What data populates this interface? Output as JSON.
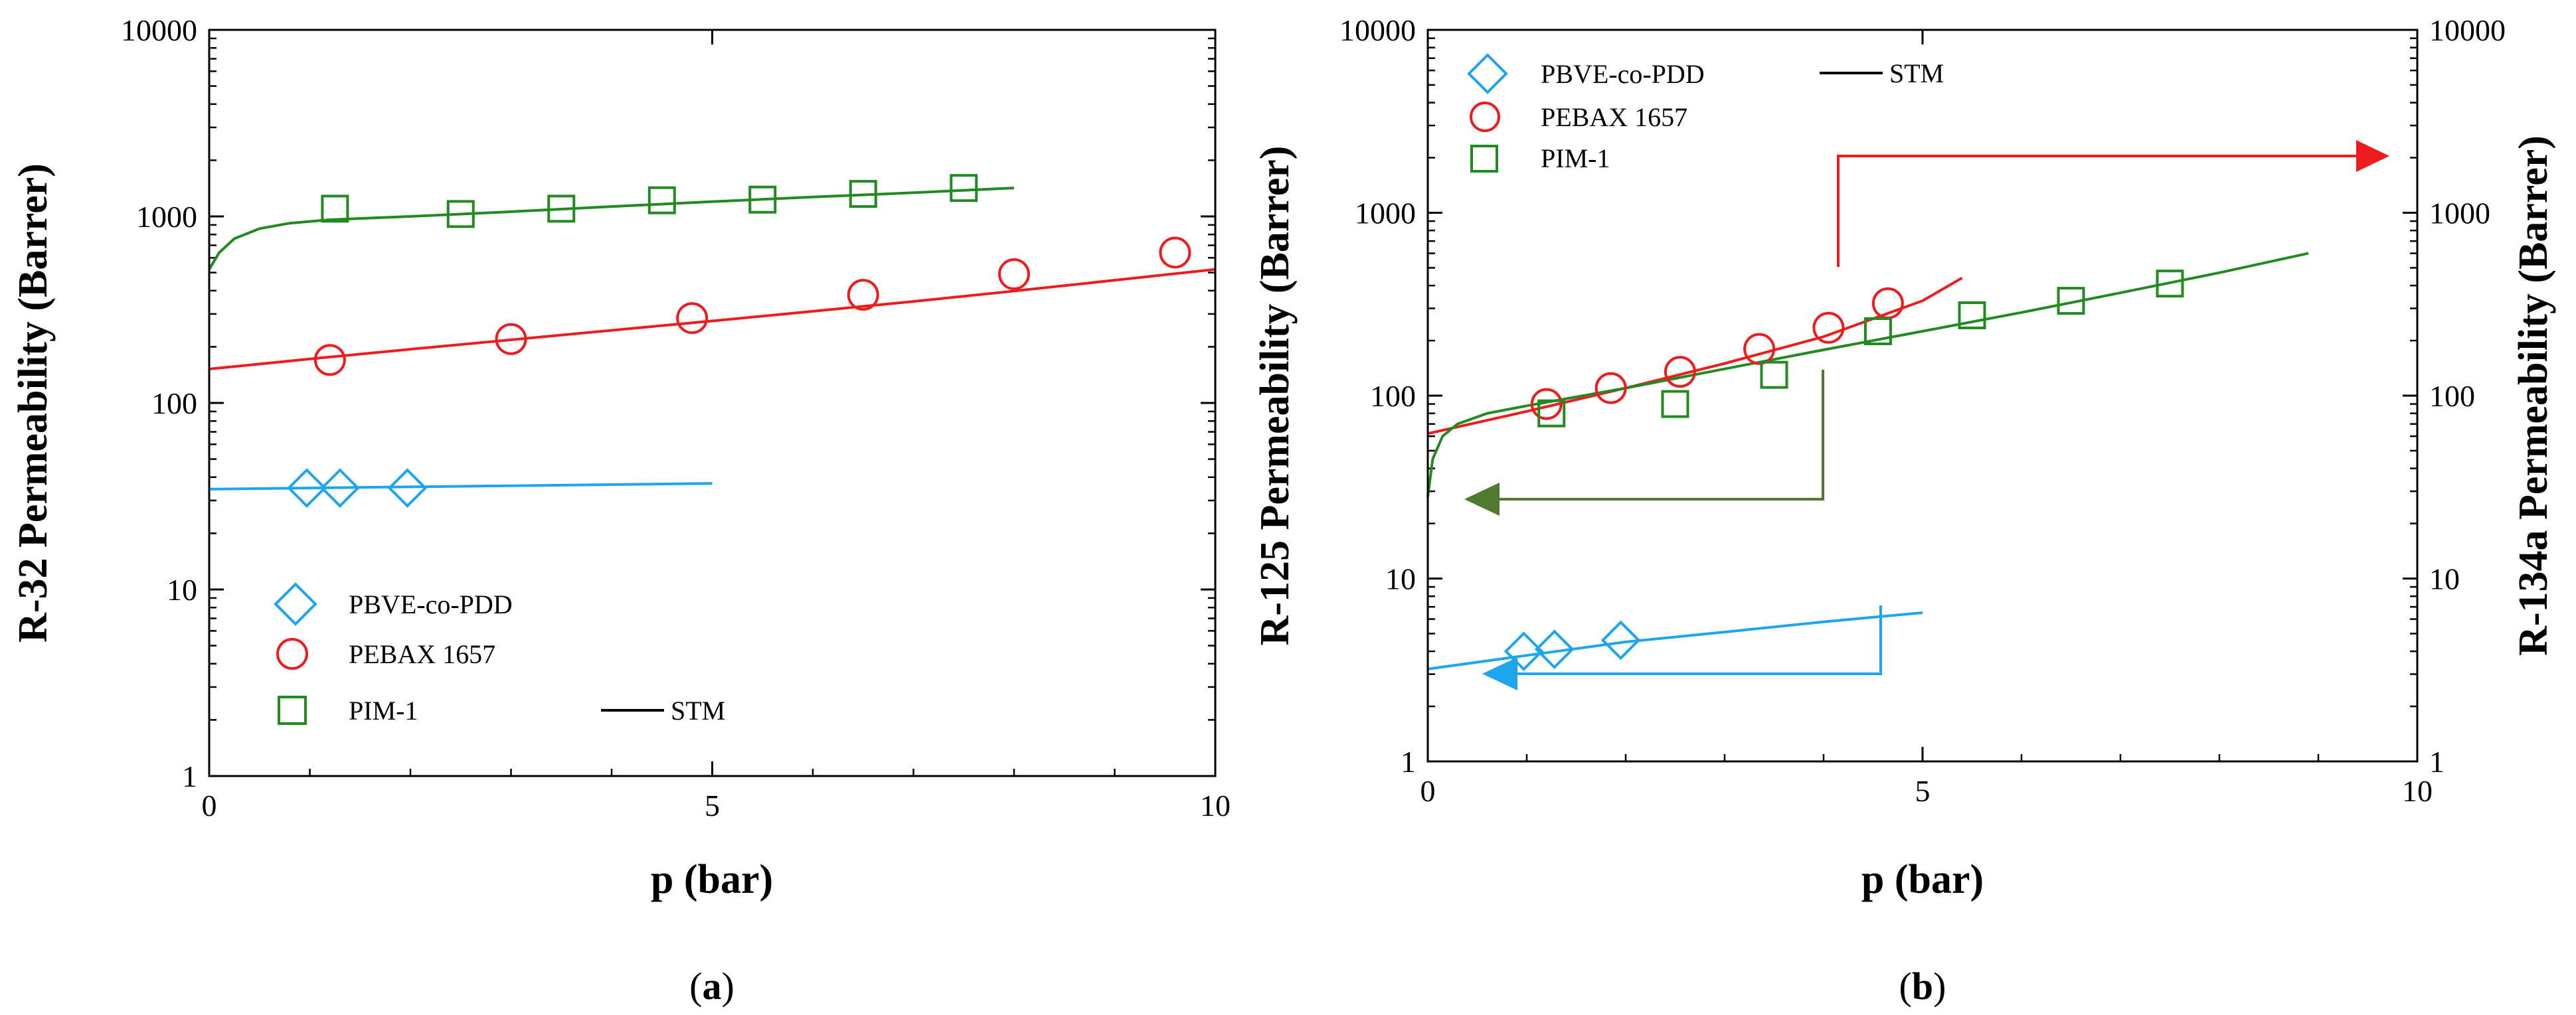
{
  "colors": {
    "blue": "#1ea5ef",
    "red": "#ee1c1c",
    "green": "#218a21",
    "arrow_green": "#4f7a2f",
    "axis": "#000000"
  },
  "chart_data": [
    {
      "type": "scatter",
      "panel_label_prefix": "(",
      "panel_label": "a",
      "panel_label_suffix": ")",
      "xlabel": "p (bar)",
      "ylabel": "R-32 Permeability (Barrer)",
      "xlim": [
        0,
        10
      ],
      "ylim": [
        1,
        10000
      ],
      "yscale": "log",
      "x_ticks": [
        0,
        5,
        10
      ],
      "x_tick_labels": [
        "0",
        "5",
        "10"
      ],
      "y_ticks": [
        1,
        10,
        100,
        1000,
        10000
      ],
      "y_tick_labels": [
        "1",
        "10",
        "100",
        "1000",
        "10000"
      ],
      "legend": {
        "position": "bottom-left",
        "entries": [
          "PBVE-co-PDD",
          "PEBAX 1657",
          "PIM-1"
        ],
        "model_label": "STM"
      },
      "series": [
        {
          "name": "PBVE-co-PDD",
          "color": "#1ea5ef",
          "marker": "diamond",
          "x": [
            0.97,
            1.3,
            1.97
          ],
          "y": [
            35,
            35,
            35
          ],
          "fit_x": [
            0,
            1,
            2,
            3,
            4,
            5
          ],
          "fit_y": [
            34.5,
            35,
            35.5,
            36,
            36.5,
            37
          ]
        },
        {
          "name": "PEBAX 1657",
          "color": "#ee1c1c",
          "marker": "circle",
          "x": [
            1.2,
            3.0,
            4.8,
            6.5,
            8.0,
            9.6
          ],
          "y": [
            170,
            220,
            285,
            380,
            490,
            640
          ],
          "fit_x": [
            0,
            1,
            2,
            3,
            4,
            5,
            6,
            7,
            8,
            9,
            10
          ],
          "fit_y": [
            152,
            172,
            194,
            218,
            245,
            275,
            310,
            350,
            398,
            455,
            520
          ]
        },
        {
          "name": "PIM-1",
          "color": "#218a21",
          "marker": "square",
          "x": [
            1.25,
            2.5,
            3.5,
            4.5,
            5.5,
            6.5,
            7.5
          ],
          "y": [
            1100,
            1030,
            1100,
            1220,
            1230,
            1320,
            1420
          ],
          "fit_x": [
            0,
            0.1,
            0.25,
            0.5,
            0.8,
            1.2,
            2,
            3,
            4,
            5,
            6,
            7,
            8
          ],
          "fit_y": [
            520,
            640,
            760,
            860,
            920,
            960,
            1000,
            1060,
            1130,
            1200,
            1270,
            1340,
            1420
          ]
        }
      ]
    },
    {
      "type": "scatter",
      "panel_label_prefix": "(",
      "panel_label": "b",
      "panel_label_suffix": ")",
      "xlabel": "p (bar)",
      "ylabel": "R-125 Permeability (Barrer)",
      "ylabel_right": "R-134a Permeability (Barrer)",
      "xlim": [
        0,
        10
      ],
      "ylim": [
        1,
        10000
      ],
      "yscale": "log",
      "x_ticks": [
        0,
        5,
        10
      ],
      "x_tick_labels": [
        "0",
        "5",
        "10"
      ],
      "y_ticks": [
        1,
        10,
        100,
        1000,
        10000
      ],
      "y_tick_labels": [
        "1",
        "10",
        "100",
        "1000",
        "10000"
      ],
      "legend": {
        "position": "top-left",
        "entries": [
          "PBVE-co-PDD",
          "PEBAX 1657",
          "PIM-1"
        ],
        "model_label": "STM"
      },
      "annotations": [
        "PBVE-co-PDD and PIM-1 read on left axis (R-125)",
        "PEBAX 1657 reads on right axis (R-134a)"
      ],
      "series": [
        {
          "name": "PBVE-co-PDD",
          "color": "#1ea5ef",
          "marker": "diamond",
          "x": [
            0.97,
            1.28,
            1.95
          ],
          "y": [
            4.0,
            4.1,
            4.6
          ],
          "fit_x": [
            0,
            1,
            2,
            3,
            4,
            5
          ],
          "fit_y": [
            3.2,
            3.8,
            4.5,
            5.1,
            5.8,
            6.5
          ]
        },
        {
          "name": "PEBAX 1657",
          "color": "#ee1c1c",
          "marker": "circle",
          "x": [
            1.2,
            1.85,
            2.55,
            3.35,
            4.05,
            4.65
          ],
          "y": [
            90,
            110,
            135,
            180,
            235,
            320
          ],
          "fit_x": [
            0,
            1,
            2,
            3,
            4,
            5,
            5.4
          ],
          "fit_y": [
            62,
            82,
            110,
            150,
            210,
            330,
            440
          ]
        },
        {
          "name": "PIM-1",
          "color": "#218a21",
          "marker": "square",
          "x": [
            1.25,
            2.5,
            3.5,
            4.55,
            5.5,
            6.5,
            7.5
          ],
          "y": [
            80,
            90,
            130,
            225,
            275,
            330,
            410
          ],
          "fit_x": [
            0,
            0.05,
            0.15,
            0.3,
            0.6,
            1,
            2,
            3,
            4,
            5,
            6,
            7,
            8,
            8.9
          ],
          "fit_y": [
            28,
            45,
            60,
            70,
            80,
            88,
            110,
            140,
            178,
            225,
            285,
            365,
            470,
            600
          ]
        }
      ]
    }
  ]
}
